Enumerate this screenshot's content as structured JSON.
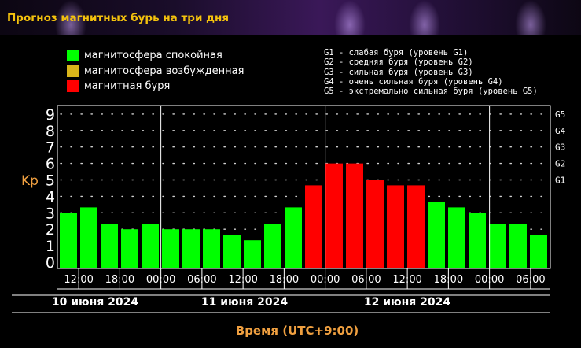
{
  "title": "Прогноз магнитных бурь на три дня",
  "legend": [
    {
      "label": "магнитосфера спокойная",
      "color": "#00ff00"
    },
    {
      "label": "магнитосфера возбужденная",
      "color": "#d9b51a"
    },
    {
      "label": "магнитная буря",
      "color": "#ff0000"
    }
  ],
  "g_legend": [
    "G1 - слабая буря (уровень G1)",
    "G2 - средняя буря (уровень G2)",
    "G3 - сильная буря (уровень G3)",
    "G4 - очень сильная буря (уровень G4)",
    "G5 - экстремально сильная буря (уровень G5)"
  ],
  "chart_data": {
    "type": "bar",
    "ylabel": "Kp",
    "xlabel": "Время (UTC+9:00)",
    "ylim": [
      0,
      9
    ],
    "yticks": [
      "0",
      "1",
      "2",
      "3",
      "4",
      "5",
      "6",
      "7",
      "8",
      "9"
    ],
    "g_ticks": [
      {
        "label": "G1",
        "kp": 5
      },
      {
        "label": "G2",
        "kp": 6
      },
      {
        "label": "G3",
        "kp": 7
      },
      {
        "label": "G4",
        "kp": 8
      },
      {
        "label": "G5",
        "kp": 9
      }
    ],
    "grid": true,
    "values": [
      3.0,
      3.33,
      2.33,
      2.0,
      2.33,
      2.0,
      2.0,
      2.0,
      1.67,
      1.33,
      2.33,
      3.33,
      4.67,
      6.0,
      6.0,
      5.0,
      4.67,
      4.67,
      3.67,
      3.33,
      3.0,
      2.33,
      2.33,
      1.67
    ],
    "colors": [
      "#00ff00",
      "#00ff00",
      "#00ff00",
      "#00ff00",
      "#00ff00",
      "#00ff00",
      "#00ff00",
      "#00ff00",
      "#00ff00",
      "#00ff00",
      "#00ff00",
      "#00ff00",
      "#ff0000",
      "#ff0000",
      "#ff0000",
      "#ff0000",
      "#ff0000",
      "#ff0000",
      "#00ff00",
      "#00ff00",
      "#00ff00",
      "#00ff00",
      "#00ff00",
      "#00ff00"
    ],
    "time_labels": [
      "12:00",
      "18:00",
      "00:00",
      "06:00",
      "12:00",
      "18:00",
      "00:00",
      "06:00",
      "12:00",
      "18:00",
      "00:00",
      "06:00"
    ],
    "days": [
      "10 июня 2024",
      "11 июня 2024",
      "12 июня 2024"
    ]
  }
}
